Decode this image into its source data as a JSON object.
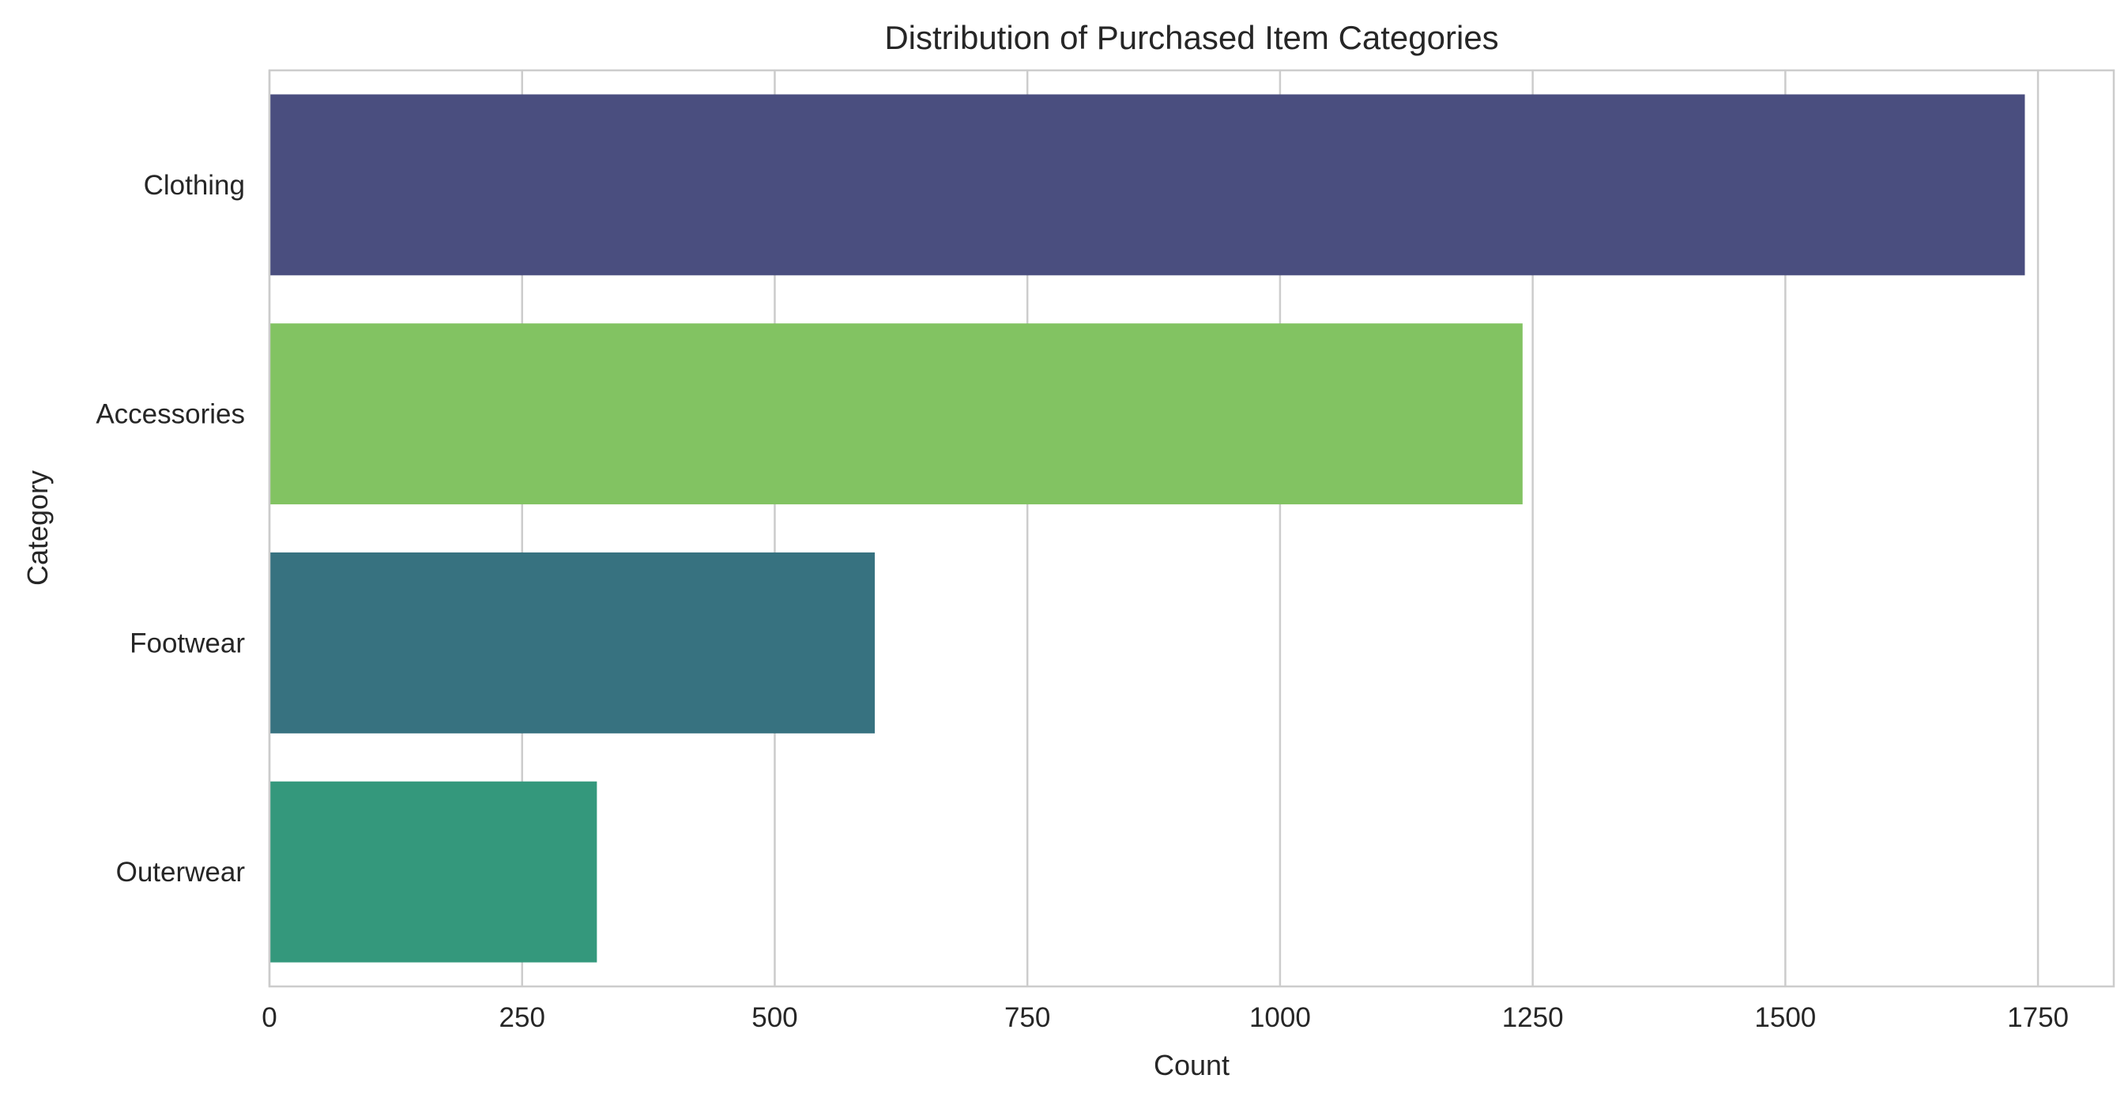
{
  "chart_data": {
    "type": "bar",
    "orientation": "horizontal",
    "title": "Distribution of Purchased Item Categories",
    "xlabel": "Count",
    "ylabel": "Category",
    "categories": [
      "Clothing",
      "Accessories",
      "Footwear",
      "Outerwear"
    ],
    "values": [
      1737,
      1240,
      599,
      324
    ],
    "colors": [
      "#4a4e7f",
      "#82c362",
      "#377280",
      "#34987c"
    ],
    "xlim": [
      0,
      1825
    ],
    "xticks": [
      0,
      250,
      500,
      750,
      1000,
      1250,
      1500,
      1750
    ],
    "grid": true,
    "legend": "none"
  }
}
